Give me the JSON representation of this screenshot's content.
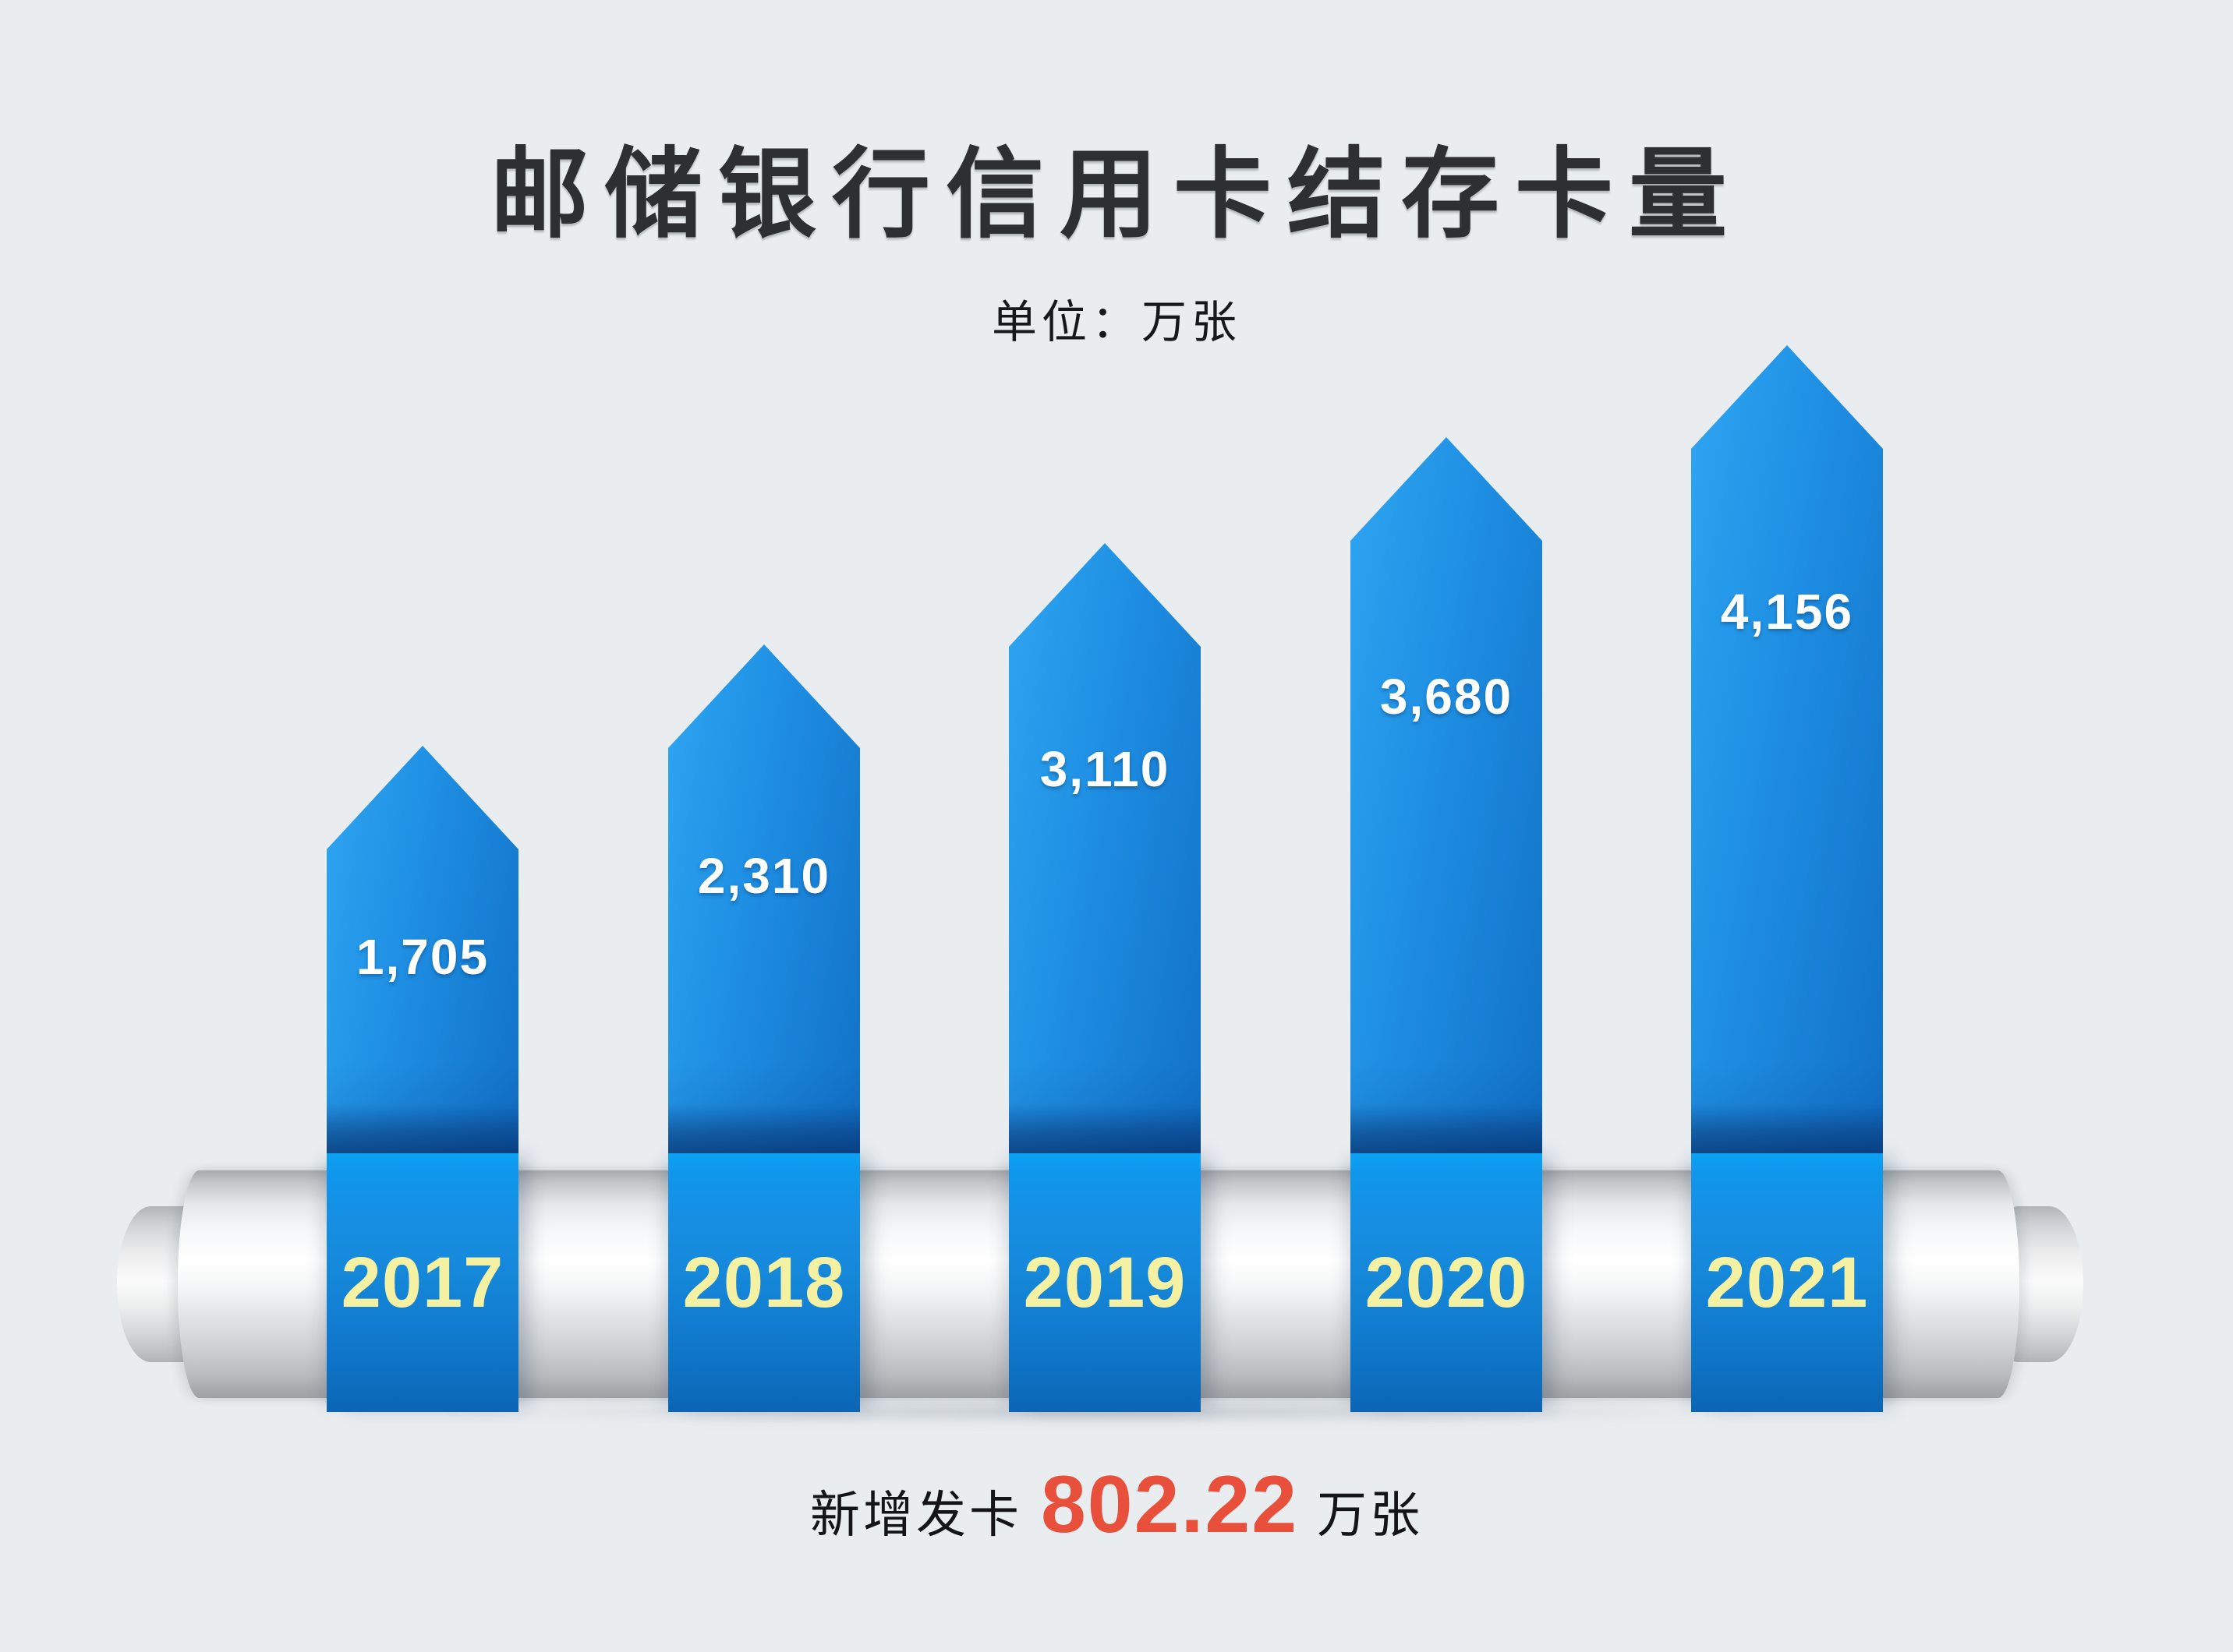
{
  "page": {
    "background_color": "#e9edf0"
  },
  "chart_data": {
    "type": "bar",
    "title": "邮储银行信用卡结存卡量",
    "unit_label": "单位：万张",
    "categories": [
      "2017",
      "2018",
      "2019",
      "2020",
      "2021"
    ],
    "values": [
      1705,
      2310,
      3110,
      3680,
      4156
    ],
    "value_labels": [
      "1,705",
      "2,310",
      "3,110",
      "3,680",
      "4,156"
    ],
    "xlabel": "",
    "ylabel": "万张",
    "legend": [],
    "grid": "off",
    "footnote": {
      "prefix": "新增发卡",
      "value": "802.22",
      "suffix": "万张"
    },
    "colors": {
      "bar_light": "#2ea6f2",
      "bar_dark": "#1171c8",
      "ribbon_top": "#0ba4f6",
      "ribbon_bottom": "#0b65b5",
      "year_text": "#f5f1a2",
      "value_text": "#ffffff",
      "highlight_number": "#e8503c",
      "title_text": "#2e2f33",
      "cylinder_silver": "#f4f5f6"
    }
  }
}
